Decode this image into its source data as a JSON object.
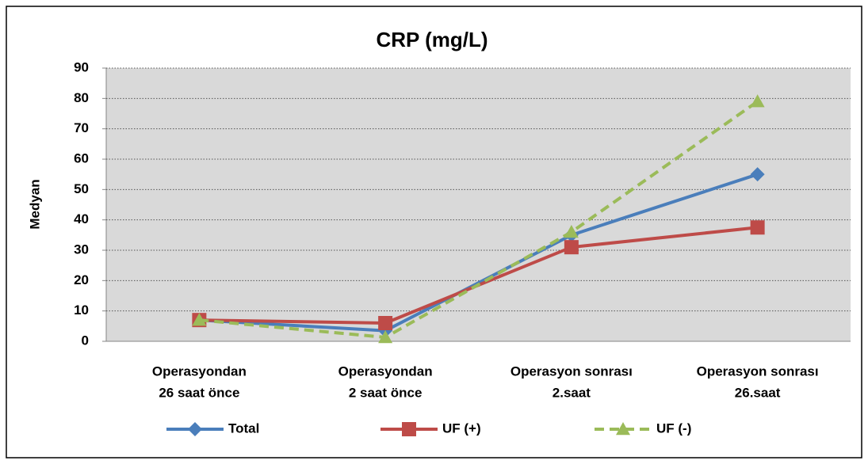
{
  "chart_data": {
    "type": "line",
    "title": "CRP (mg/L)",
    "y_label": "Medyan",
    "categories": [
      [
        "Operasyondan",
        "26 saat önce"
      ],
      [
        "Operasyondan",
        "2 saat önce"
      ],
      [
        "Operasyon sonrası",
        "2.saat"
      ],
      [
        "Operasyon sonrası",
        "26.saat"
      ]
    ],
    "series": [
      {
        "name": "Total",
        "color": "#4a7ebb",
        "marker": "diamond",
        "dashed": false,
        "values": [
          7,
          3.5,
          35,
          55
        ]
      },
      {
        "name": "UF (+)",
        "color": "#be4b48",
        "marker": "square",
        "dashed": false,
        "values": [
          7,
          6,
          31,
          37.5
        ]
      },
      {
        "name": "UF (-)",
        "color": "#9bbb59",
        "marker": "triangle",
        "dashed": true,
        "values": [
          7,
          1.3,
          36,
          79
        ]
      }
    ],
    "ylim": [
      0,
      90
    ],
    "yticks": [
      0,
      10,
      20,
      30,
      40,
      50,
      60,
      70,
      80,
      90
    ],
    "grid": true,
    "legend": "bottom"
  }
}
